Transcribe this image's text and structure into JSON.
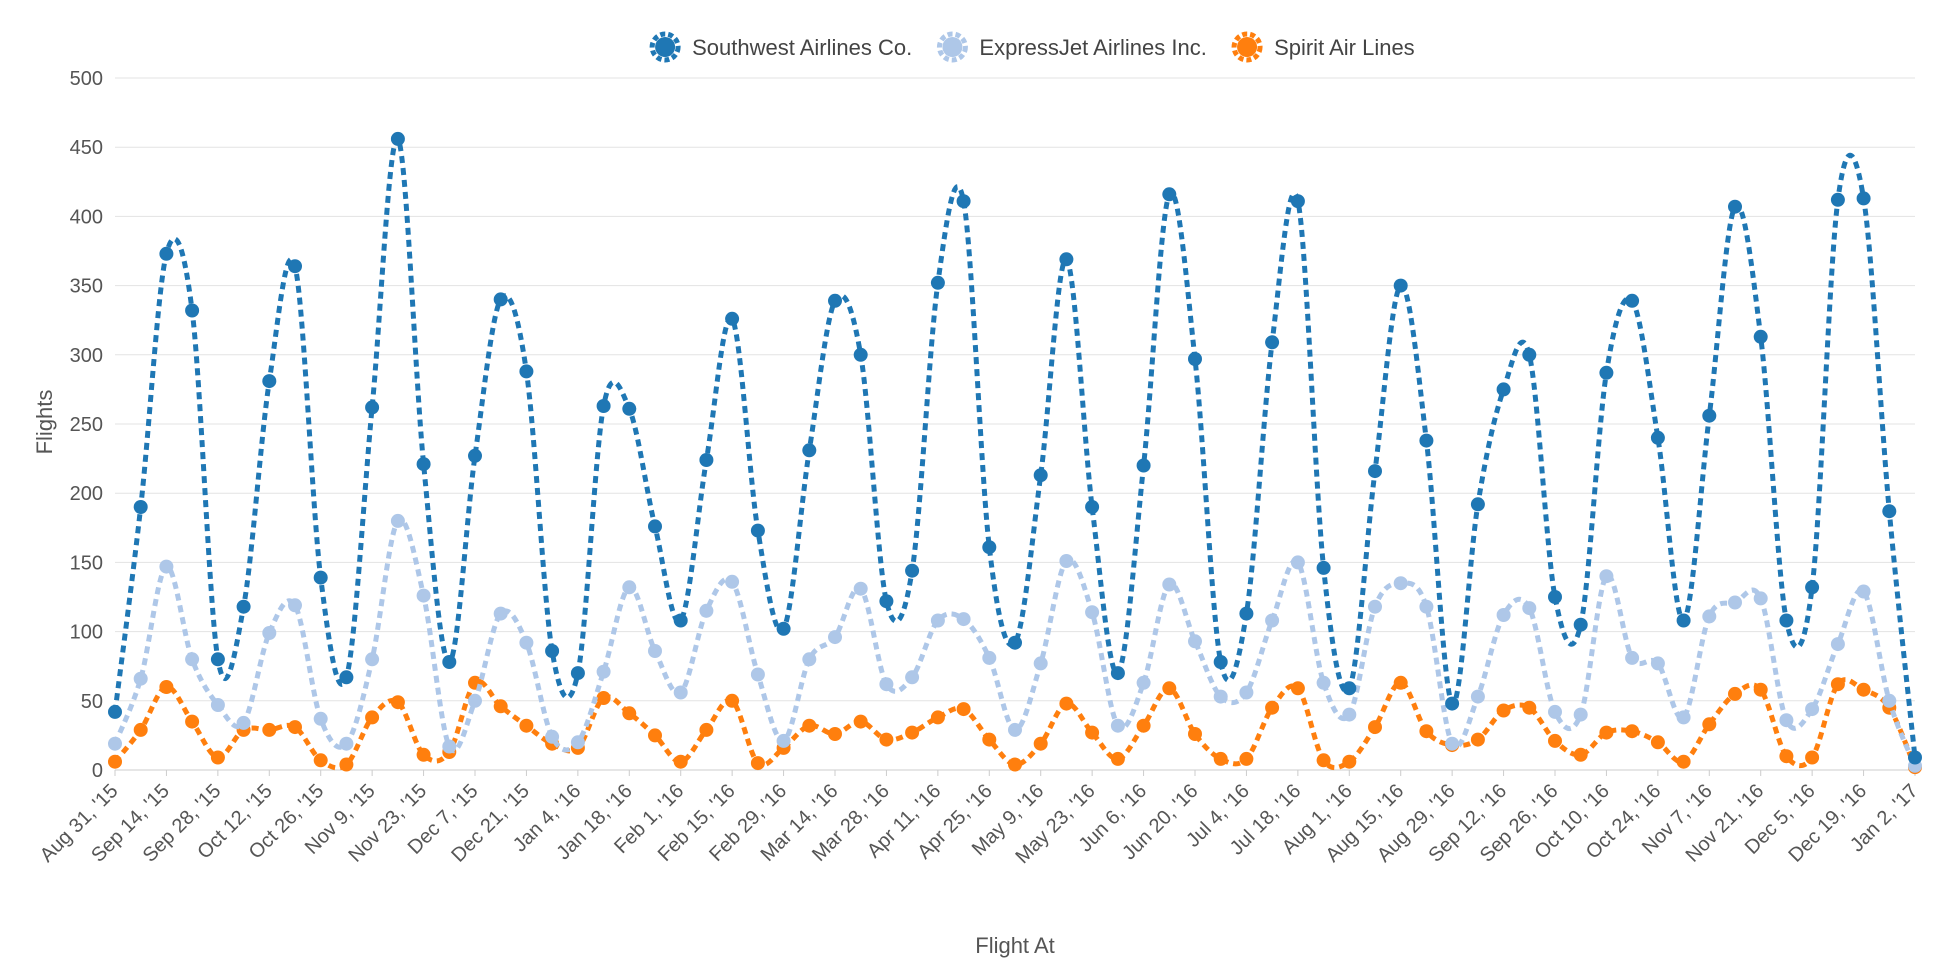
{
  "chart_data": {
    "type": "line",
    "title": "",
    "xlabel": "Flight At",
    "ylabel": "Flights",
    "ylim": [
      0,
      500
    ],
    "y_ticks": [
      0,
      50,
      100,
      150,
      200,
      250,
      300,
      350,
      400,
      450,
      500
    ],
    "grid": "horizontal",
    "legend_position": "top-center",
    "line_style": "dashed-smooth",
    "x": [
      "Aug 31, '15",
      "Sep 7, '15",
      "Sep 14, '15",
      "Sep 21, '15",
      "Sep 28, '15",
      "Oct 5, '15",
      "Oct 12, '15",
      "Oct 19, '15",
      "Oct 26, '15",
      "Nov 2, '15",
      "Nov 9, '15",
      "Nov 16, '15",
      "Nov 23, '15",
      "Nov 30, '15",
      "Dec 7, '15",
      "Dec 14, '15",
      "Dec 21, '15",
      "Dec 28, '15",
      "Jan 4, '16",
      "Jan 11, '16",
      "Jan 18, '16",
      "Jan 25, '16",
      "Feb 1, '16",
      "Feb 8, '16",
      "Feb 15, '16",
      "Feb 22, '16",
      "Feb 29, '16",
      "Mar 7, '16",
      "Mar 14, '16",
      "Mar 21, '16",
      "Mar 28, '16",
      "Apr 4, '16",
      "Apr 11, '16",
      "Apr 18, '16",
      "Apr 25, '16",
      "May 2, '16",
      "May 9, '16",
      "May 16, '16",
      "May 23, '16",
      "May 30, '16",
      "Jun 6, '16",
      "Jun 13, '16",
      "Jun 20, '16",
      "Jun 27, '16",
      "Jul 4, '16",
      "Jul 11, '16",
      "Jul 18, '16",
      "Jul 25, '16",
      "Aug 1, '16",
      "Aug 8, '16",
      "Aug 15, '16",
      "Aug 22, '16",
      "Aug 29, '16",
      "Sep 5, '16",
      "Sep 12, '16",
      "Sep 19, '16",
      "Sep 26, '16",
      "Oct 3, '16",
      "Oct 10, '16",
      "Oct 17, '16",
      "Oct 24, '16",
      "Oct 31, '16",
      "Nov 7, '16",
      "Nov 14, '16",
      "Nov 21, '16",
      "Nov 28, '16",
      "Dec 5, '16",
      "Dec 12, '16",
      "Dec 19, '16",
      "Dec 26, '16",
      "Jan 2, '17"
    ],
    "x_tick_labels": [
      "Aug 31, '15",
      "Sep 14, '15",
      "Sep 28, '15",
      "Oct 12, '15",
      "Oct 26, '15",
      "Nov 9, '15",
      "Nov 23, '15",
      "Dec 7, '15",
      "Dec 21, '15",
      "Jan 4, '16",
      "Jan 18, '16",
      "Feb 1, '16",
      "Feb 15, '16",
      "Feb 29, '16",
      "Mar 14, '16",
      "Mar 28, '16",
      "Apr 11, '16",
      "Apr 25, '16",
      "May 9, '16",
      "May 23, '16",
      "Jun 6, '16",
      "Jun 20, '16",
      "Jul 4, '16",
      "Jul 18, '16",
      "Aug 1, '16",
      "Aug 15, '16",
      "Aug 29, '16",
      "Sep 12, '16",
      "Sep 26, '16",
      "Oct 10, '16",
      "Oct 24, '16",
      "Nov 7, '16",
      "Nov 21, '16",
      "Dec 5, '16",
      "Dec 19, '16",
      "Jan 2, '17"
    ],
    "series": [
      {
        "name": "Southwest Airlines Co.",
        "color": "#1f77b4",
        "values": [
          42,
          190,
          373,
          332,
          80,
          118,
          281,
          364,
          139,
          67,
          262,
          456,
          221,
          78,
          227,
          340,
          288,
          86,
          70,
          263,
          261,
          176,
          108,
          224,
          326,
          173,
          102,
          231,
          339,
          300,
          122,
          144,
          352,
          411,
          161,
          92,
          213,
          369,
          190,
          70,
          220,
          416,
          297,
          78,
          113,
          309,
          411,
          146,
          59,
          216,
          350,
          238,
          48,
          192,
          275,
          300,
          125,
          105,
          287,
          339,
          240,
          108,
          256,
          407,
          313,
          108,
          132,
          412,
          413,
          187,
          9
        ]
      },
      {
        "name": "ExpressJet Airlines Inc.",
        "color": "#aec7e8",
        "values": [
          19,
          66,
          147,
          80,
          47,
          34,
          99,
          119,
          37,
          19,
          80,
          180,
          126,
          17,
          50,
          113,
          92,
          24,
          20,
          71,
          132,
          86,
          56,
          115,
          136,
          69,
          21,
          80,
          96,
          131,
          62,
          67,
          108,
          109,
          81,
          29,
          77,
          151,
          114,
          32,
          63,
          134,
          93,
          53,
          56,
          108,
          150,
          63,
          40,
          118,
          135,
          118,
          19,
          53,
          112,
          117,
          42,
          40,
          140,
          81,
          77,
          38,
          111,
          121,
          124,
          36,
          44,
          91,
          129,
          50,
          3
        ]
      },
      {
        "name": "Spirit Air Lines",
        "color": "#ff7f0e",
        "values": [
          6,
          29,
          60,
          35,
          9,
          29,
          29,
          31,
          7,
          4,
          38,
          49,
          11,
          13,
          63,
          46,
          32,
          19,
          16,
          52,
          41,
          25,
          6,
          29,
          50,
          5,
          16,
          32,
          26,
          35,
          22,
          27,
          38,
          44,
          22,
          4,
          19,
          48,
          27,
          8,
          32,
          59,
          26,
          8,
          8,
          45,
          59,
          7,
          6,
          31,
          63,
          28,
          18,
          22,
          43,
          45,
          21,
          11,
          27,
          28,
          20,
          6,
          33,
          55,
          58,
          10,
          9,
          62,
          58,
          45,
          2
        ]
      }
    ]
  }
}
